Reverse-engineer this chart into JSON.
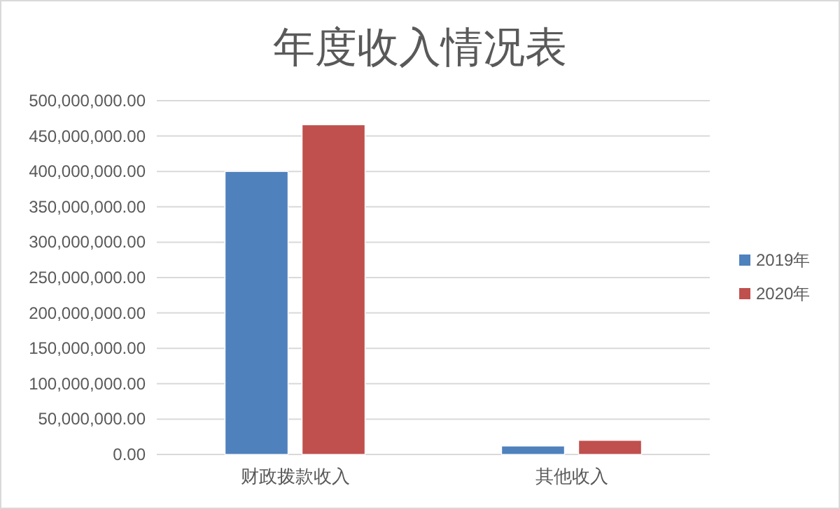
{
  "chart_data": {
    "type": "bar",
    "title": "年度收入情况表",
    "categories": [
      "财政拨款收入",
      "其他收入"
    ],
    "series": [
      {
        "name": "2019年",
        "color": "#4f81bd",
        "values": [
          400000000,
          12000000
        ]
      },
      {
        "name": "2020年",
        "color": "#c0504d",
        "values": [
          466000000,
          20000000
        ]
      }
    ],
    "ylim": [
      0,
      500000000
    ],
    "yticks": [
      {
        "value": 0,
        "label": "0.00"
      },
      {
        "value": 50000000,
        "label": "50,000,000.00"
      },
      {
        "value": 100000000,
        "label": "100,000,000.00"
      },
      {
        "value": 150000000,
        "label": "150,000,000.00"
      },
      {
        "value": 200000000,
        "label": "200,000,000.00"
      },
      {
        "value": 250000000,
        "label": "250,000,000.00"
      },
      {
        "value": 300000000,
        "label": "300,000,000.00"
      },
      {
        "value": 350000000,
        "label": "350,000,000.00"
      },
      {
        "value": 400000000,
        "label": "400,000,000.00"
      },
      {
        "value": 450000000,
        "label": "450,000,000.00"
      },
      {
        "value": 500000000,
        "label": "500,000,000.00"
      }
    ],
    "grid": "y",
    "legend": "right"
  }
}
